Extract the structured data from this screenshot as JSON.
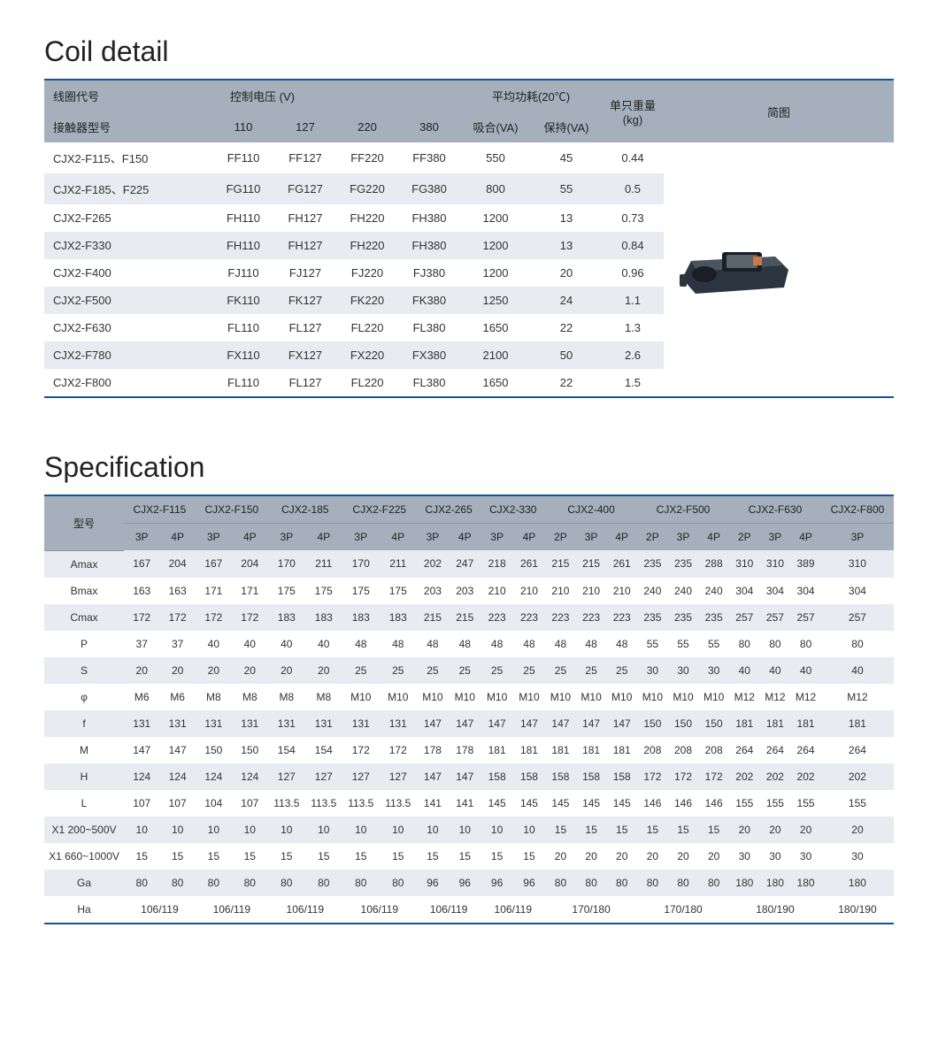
{
  "coil": {
    "title": "Coil detail",
    "header": {
      "coilCode": "线圈代号",
      "voltage": "控制电压 (V)",
      "contactorModel": "接触器型号",
      "v110": "110",
      "v127": "127",
      "v220": "220",
      "v380": "380",
      "avgPower": "平均功耗(20℃)",
      "inrush": "吸合(VA)",
      "hold": "保持(VA)",
      "weight": "单只重量(kg)",
      "diagram": "简图"
    },
    "rows": [
      {
        "model": "CJX2-F115、F150",
        "c110": "FF110",
        "c127": "FF127",
        "c220": "FF220",
        "c380": "FF380",
        "inrush": "550",
        "hold": "45",
        "wt": "0.44"
      },
      {
        "model": "CJX2-F185、F225",
        "c110": "FG110",
        "c127": "FG127",
        "c220": "FG220",
        "c380": "FG380",
        "inrush": "800",
        "hold": "55",
        "wt": "0.5"
      },
      {
        "model": "CJX2-F265",
        "c110": "FH110",
        "c127": "FH127",
        "c220": "FH220",
        "c380": "FH380",
        "inrush": "1200",
        "hold": "13",
        "wt": "0.73"
      },
      {
        "model": "CJX2-F330",
        "c110": "FH110",
        "c127": "FH127",
        "c220": "FH220",
        "c380": "FH380",
        "inrush": "1200",
        "hold": "13",
        "wt": "0.84"
      },
      {
        "model": "CJX2-F400",
        "c110": "FJ110",
        "c127": "FJ127",
        "c220": "FJ220",
        "c380": "FJ380",
        "inrush": "1200",
        "hold": "20",
        "wt": "0.96"
      },
      {
        "model": "CJX2-F500",
        "c110": "FK110",
        "c127": "FK127",
        "c220": "FK220",
        "c380": "FK380",
        "inrush": "1250",
        "hold": "24",
        "wt": "1.1"
      },
      {
        "model": "CJX2-F630",
        "c110": "FL110",
        "c127": "FL127",
        "c220": "FL220",
        "c380": "FL380",
        "inrush": "1650",
        "hold": "22",
        "wt": "1.3"
      },
      {
        "model": "CJX2-F780",
        "c110": "FX110",
        "c127": "FX127",
        "c220": "FX220",
        "c380": "FX380",
        "inrush": "2100",
        "hold": "50",
        "wt": "2.6"
      },
      {
        "model": "CJX2-F800",
        "c110": "FL110",
        "c127": "FL127",
        "c220": "FL220",
        "c380": "FL380",
        "inrush": "1650",
        "hold": "22",
        "wt": "1.5"
      }
    ]
  },
  "spec": {
    "title": "Specification",
    "modelLabel": "型号",
    "models": [
      {
        "name": "CJX2-F115",
        "poles": [
          "3P",
          "4P"
        ]
      },
      {
        "name": "CJX2-F150",
        "poles": [
          "3P",
          "4P"
        ]
      },
      {
        "name": "CJX2-185",
        "poles": [
          "3P",
          "4P"
        ]
      },
      {
        "name": "CJX2-F225",
        "poles": [
          "3P",
          "4P"
        ]
      },
      {
        "name": "CJX2-265",
        "poles": [
          "3P",
          "4P"
        ]
      },
      {
        "name": "CJX2-330",
        "poles": [
          "3P",
          "4P"
        ]
      },
      {
        "name": "CJX2-400",
        "poles": [
          "2P",
          "3P",
          "4P"
        ]
      },
      {
        "name": "CJX2-F500",
        "poles": [
          "2P",
          "3P",
          "4P"
        ]
      },
      {
        "name": "CJX2-F630",
        "poles": [
          "2P",
          "3P",
          "4P"
        ]
      },
      {
        "name": "CJX2-F800",
        "poles": [
          "3P"
        ]
      }
    ],
    "params": [
      {
        "label": "Amax",
        "vals": [
          "167",
          "204",
          "167",
          "204",
          "170",
          "211",
          "170",
          "211",
          "202",
          "247",
          "218",
          "261",
          "215",
          "215",
          "261",
          "235",
          "235",
          "288",
          "310",
          "310",
          "389",
          "310"
        ]
      },
      {
        "label": "Bmax",
        "vals": [
          "163",
          "163",
          "171",
          "171",
          "175",
          "175",
          "175",
          "175",
          "203",
          "203",
          "210",
          "210",
          "210",
          "210",
          "210",
          "240",
          "240",
          "240",
          "304",
          "304",
          "304",
          "304"
        ]
      },
      {
        "label": "Cmax",
        "vals": [
          "172",
          "172",
          "172",
          "172",
          "183",
          "183",
          "183",
          "183",
          "215",
          "215",
          "223",
          "223",
          "223",
          "223",
          "223",
          "235",
          "235",
          "235",
          "257",
          "257",
          "257",
          "257"
        ]
      },
      {
        "label": "P",
        "vals": [
          "37",
          "37",
          "40",
          "40",
          "40",
          "40",
          "48",
          "48",
          "48",
          "48",
          "48",
          "48",
          "48",
          "48",
          "48",
          "55",
          "55",
          "55",
          "80",
          "80",
          "80",
          "80"
        ]
      },
      {
        "label": "S",
        "vals": [
          "20",
          "20",
          "20",
          "20",
          "20",
          "20",
          "25",
          "25",
          "25",
          "25",
          "25",
          "25",
          "25",
          "25",
          "25",
          "30",
          "30",
          "30",
          "40",
          "40",
          "40",
          "40"
        ]
      },
      {
        "label": "φ",
        "vals": [
          "M6",
          "M6",
          "M8",
          "M8",
          "M8",
          "M8",
          "M10",
          "M10",
          "M10",
          "M10",
          "M10",
          "M10",
          "M10",
          "M10",
          "M10",
          "M10",
          "M10",
          "M10",
          "M12",
          "M12",
          "M12",
          "M12"
        ]
      },
      {
        "label": "f",
        "vals": [
          "131",
          "131",
          "131",
          "131",
          "131",
          "131",
          "131",
          "131",
          "147",
          "147",
          "147",
          "147",
          "147",
          "147",
          "147",
          "150",
          "150",
          "150",
          "181",
          "181",
          "181",
          "181"
        ]
      },
      {
        "label": "M",
        "vals": [
          "147",
          "147",
          "150",
          "150",
          "154",
          "154",
          "172",
          "172",
          "178",
          "178",
          "181",
          "181",
          "181",
          "181",
          "181",
          "208",
          "208",
          "208",
          "264",
          "264",
          "264",
          "264"
        ]
      },
      {
        "label": "H",
        "vals": [
          "124",
          "124",
          "124",
          "124",
          "127",
          "127",
          "127",
          "127",
          "147",
          "147",
          "158",
          "158",
          "158",
          "158",
          "158",
          "172",
          "172",
          "172",
          "202",
          "202",
          "202",
          "202"
        ]
      },
      {
        "label": "L",
        "vals": [
          "107",
          "107",
          "104",
          "107",
          "113.5",
          "113.5",
          "113.5",
          "113.5",
          "141",
          "141",
          "145",
          "145",
          "145",
          "145",
          "145",
          "146",
          "146",
          "146",
          "155",
          "155",
          "155",
          "155"
        ]
      },
      {
        "label": "X1 200~500V",
        "vals": [
          "10",
          "10",
          "10",
          "10",
          "10",
          "10",
          "10",
          "10",
          "10",
          "10",
          "10",
          "10",
          "15",
          "15",
          "15",
          "15",
          "15",
          "15",
          "20",
          "20",
          "20",
          "20"
        ]
      },
      {
        "label": "X1 660~1000V",
        "vals": [
          "15",
          "15",
          "15",
          "15",
          "15",
          "15",
          "15",
          "15",
          "15",
          "15",
          "15",
          "15",
          "20",
          "20",
          "20",
          "20",
          "20",
          "20",
          "30",
          "30",
          "30",
          "30"
        ]
      },
      {
        "label": "Ga",
        "vals": [
          "80",
          "80",
          "80",
          "80",
          "80",
          "80",
          "80",
          "80",
          "96",
          "96",
          "96",
          "96",
          "80",
          "80",
          "80",
          "80",
          "80",
          "80",
          "180",
          "180",
          "180",
          "180"
        ]
      }
    ],
    "haRow": {
      "label": "Ha",
      "groups": [
        {
          "span": 2,
          "val": "106/119"
        },
        {
          "span": 2,
          "val": "106/119"
        },
        {
          "span": 2,
          "val": "106/119"
        },
        {
          "span": 2,
          "val": "106/119"
        },
        {
          "span": 2,
          "val": "106/119"
        },
        {
          "span": 2,
          "val": "106/119"
        },
        {
          "span": 3,
          "val": "170/180"
        },
        {
          "span": 3,
          "val": "170/180"
        },
        {
          "span": 3,
          "val": "180/190"
        },
        {
          "span": 1,
          "val": "180/190"
        }
      ]
    }
  },
  "style": {
    "headerBg": "#a5b0bc",
    "stripeBg": "#e8ebef",
    "borderColor": "#1a5490",
    "textColor": "#333333"
  }
}
